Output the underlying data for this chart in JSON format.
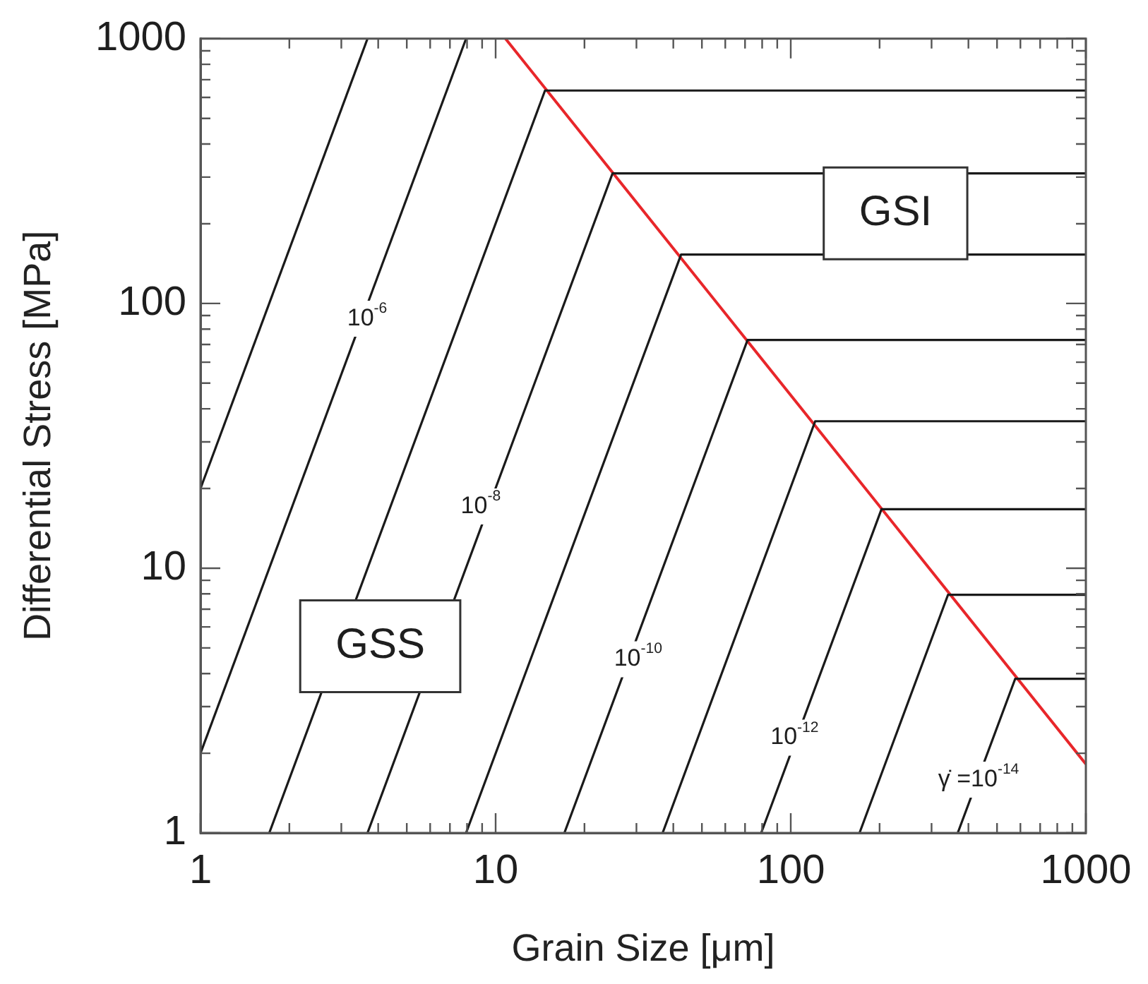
{
  "chart_data": {
    "type": "line",
    "xlabel": "Grain Size [μm]",
    "ylabel": "Differential Stress [MPa]",
    "log": "xy",
    "grid": false,
    "legend": false,
    "marker": "none",
    "line_style": "solid",
    "xlim": [
      1,
      1000
    ],
    "ylim": [
      1,
      1000
    ],
    "xticks": [
      1,
      {
        "value": 2,
        "label": null
      },
      {
        "value": 3,
        "label": null
      },
      {
        "value": 4,
        "label": null
      },
      {
        "value": 5,
        "label": null
      },
      {
        "value": 6,
        "label": null
      },
      {
        "value": 7,
        "label": null
      },
      {
        "value": 8,
        "label": null
      },
      {
        "value": 9,
        "label": null
      },
      10,
      {
        "value": 20,
        "label": null
      },
      {
        "value": 30,
        "label": null
      },
      {
        "value": 40,
        "label": null
      },
      {
        "value": 50,
        "label": null
      },
      {
        "value": 60,
        "label": null
      },
      {
        "value": 70,
        "label": null
      },
      {
        "value": 80,
        "label": null
      },
      {
        "value": 90,
        "label": null
      },
      100,
      {
        "value": 200,
        "label": null
      },
      {
        "value": 300,
        "label": null
      },
      {
        "value": 400,
        "label": null
      },
      {
        "value": 500,
        "label": null
      },
      {
        "value": 600,
        "label": null
      },
      {
        "value": 700,
        "label": null
      },
      {
        "value": 800,
        "label": null
      },
      {
        "value": 900,
        "label": null
      },
      1000
    ],
    "yticks": [
      1,
      {
        "value": 2,
        "label": null
      },
      {
        "value": 3,
        "label": null
      },
      {
        "value": 4,
        "label": null
      },
      {
        "value": 5,
        "label": null
      },
      {
        "value": 6,
        "label": null
      },
      {
        "value": 7,
        "label": null
      },
      {
        "value": 8,
        "label": null
      },
      {
        "value": 9,
        "label": null
      },
      10,
      {
        "value": 20,
        "label": null
      },
      {
        "value": 30,
        "label": null
      },
      {
        "value": 40,
        "label": null
      },
      {
        "value": 50,
        "label": null
      },
      {
        "value": 60,
        "label": null
      },
      {
        "value": 70,
        "label": null
      },
      {
        "value": 80,
        "label": null
      },
      {
        "value": 90,
        "label": null
      },
      100,
      {
        "value": 200,
        "label": null
      },
      {
        "value": 300,
        "label": null
      },
      {
        "value": 400,
        "label": null
      },
      {
        "value": 500,
        "label": null
      },
      {
        "value": 600,
        "label": null
      },
      {
        "value": 700,
        "label": null
      },
      {
        "value": 800,
        "label": null
      },
      {
        "value": 900,
        "label": null
      },
      1000
    ],
    "series": [
      {
        "color": "#1a1a1a",
        "x": [
          1,
          3.68
        ],
        "values": [
          20,
          1000
        ]
      },
      {
        "color": "#1a1a1a",
        "x": [
          1,
          7.94
        ],
        "values": [
          2,
          1000
        ]
      },
      {
        "color": "#1a1a1a",
        "x": [
          1.71,
          14.7,
          1000
        ],
        "values": [
          1,
          637,
          637
        ]
      },
      {
        "color": "#1a1a1a",
        "x": [
          3.68,
          24.9,
          1000
        ],
        "values": [
          1,
          310,
          310
        ]
      },
      {
        "color": "#1a1a1a",
        "x": [
          7.94,
          42.5,
          1000
        ],
        "values": [
          1,
          153,
          153
        ]
      },
      {
        "color": "#1a1a1a",
        "x": [
          17.1,
          71.4,
          1000
        ],
        "values": [
          1,
          72.8,
          72.8
        ]
      },
      {
        "color": "#1a1a1a",
        "x": [
          36.8,
          121,
          1000
        ],
        "values": [
          1,
          35.9,
          35.9
        ]
      },
      {
        "color": "#1a1a1a",
        "x": [
          79.4,
          203,
          1000
        ],
        "values": [
          1,
          16.7,
          16.7
        ]
      },
      {
        "color": "#1a1a1a",
        "x": [
          171,
          341,
          1000
        ],
        "values": [
          1,
          7.93,
          7.93
        ]
      },
      {
        "color": "#1a1a1a",
        "x": [
          368,
          576,
          1000
        ],
        "values": [
          1,
          3.82,
          3.82
        ]
      },
      {
        "color": "#e8262a",
        "x": [
          10.8,
          1000
        ],
        "values": [
          1000,
          1.82
        ]
      }
    ],
    "annotations": [
      "GSS",
      "GSI",
      {
        "text": "10$^{-6}$",
        "x": 3.67,
        "y": 87.5
      },
      {
        "text": "10$^{-8}$",
        "x": 8.9,
        "y": 17.1
      },
      {
        "text": "10$^{-10}$",
        "x": 30.4,
        "y": 4.53
      },
      {
        "text": "10$^{-12}$",
        "x": 103,
        "y": 2.29
      },
      {
        "text": "γ̇ =10$^{-14}$",
        "x": 433,
        "y": 1.59
      }
    ]
  }
}
